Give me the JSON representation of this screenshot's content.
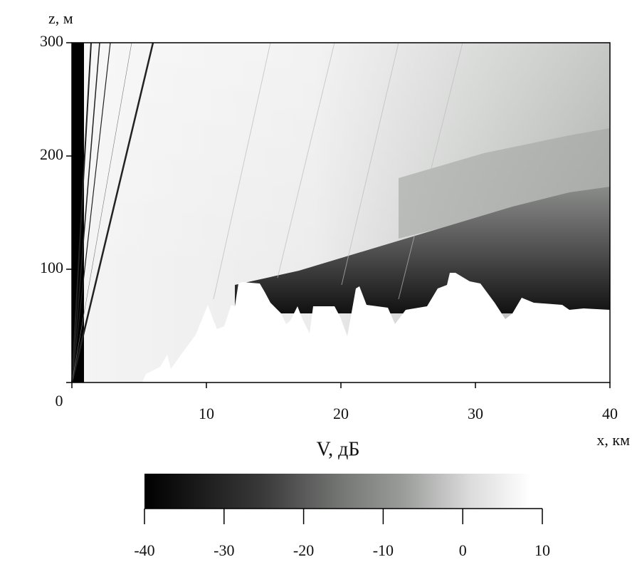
{
  "chart_data": {
    "type": "heatmap",
    "x_label": "x, км",
    "y_label": "z, м",
    "xlim": [
      0,
      40
    ],
    "xticks": [
      0,
      10,
      20,
      30,
      40
    ],
    "ylim": [
      0,
      300
    ],
    "yticks": [
      0,
      100,
      200,
      300
    ],
    "colorbar": {
      "title": "V, дБ",
      "lim": [
        -40,
        10
      ],
      "ticks": [
        -40,
        -30,
        -20,
        -10,
        0,
        10
      ]
    }
  }
}
